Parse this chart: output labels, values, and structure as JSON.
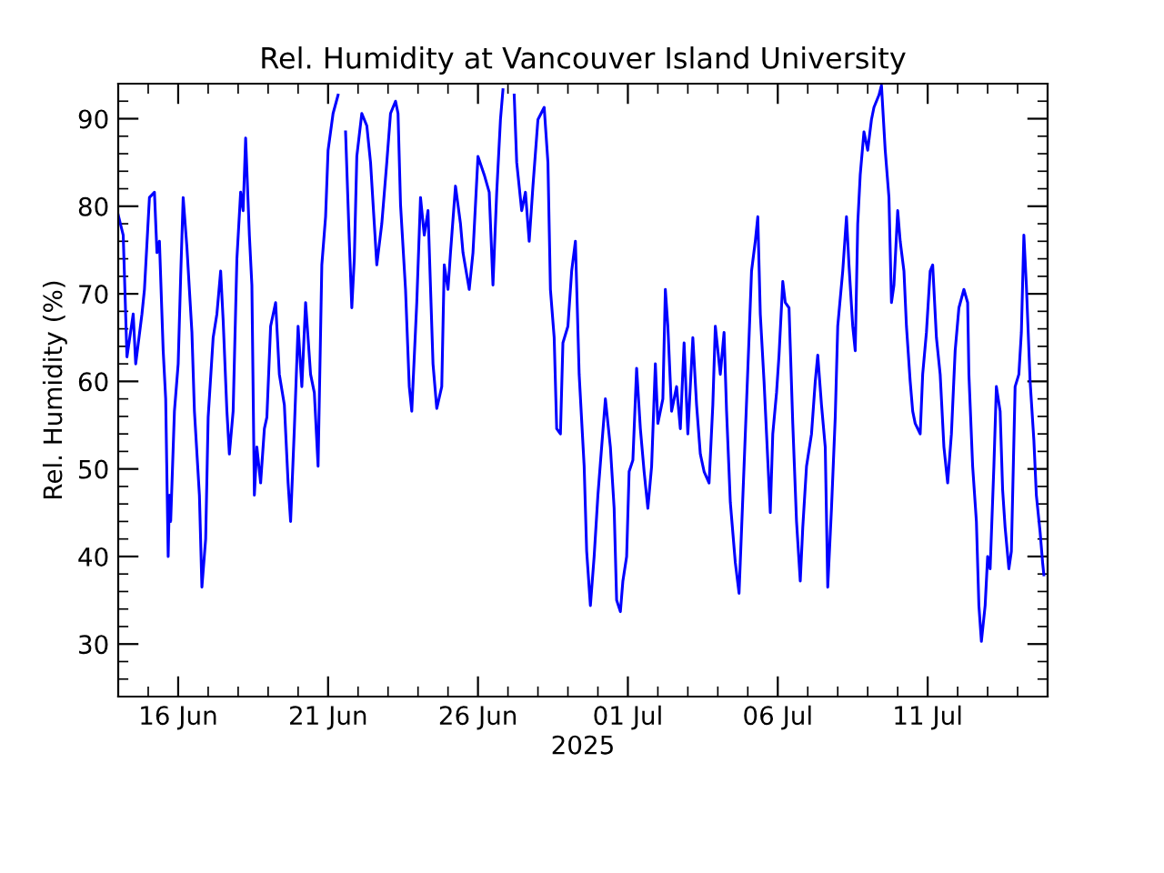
{
  "chart_data": {
    "type": "line",
    "title": "Rel. Humidity at Vancouver Island University",
    "xlabel": "2025",
    "ylabel": "Rel. Humidity (%)",
    "xlim": [
      "2025-06-14",
      "2025-07-15"
    ],
    "ylim": [
      24,
      94
    ],
    "xticks": [
      {
        "value": "2025-06-16",
        "label": "16 Jun"
      },
      {
        "value": "2025-06-21",
        "label": "21 Jun"
      },
      {
        "value": "2025-06-26",
        "label": "26 Jun"
      },
      {
        "value": "2025-07-01",
        "label": "01 Jul"
      },
      {
        "value": "2025-07-06",
        "label": "06 Jul"
      },
      {
        "value": "2025-07-11",
        "label": "11 Jul"
      }
    ],
    "yticks": [
      30,
      40,
      50,
      60,
      70,
      80,
      90
    ],
    "grid": false,
    "marker": "none",
    "line_style": "solid",
    "series": [
      {
        "color": "#0000ff",
        "x": [
          "2025-06-14T00:00",
          "2025-06-14T04:00",
          "2025-06-14T07:00",
          "2025-06-14T12:00",
          "2025-06-14T14:00",
          "2025-06-14T19:00",
          "2025-06-14T21:00",
          "2025-06-15T01:00",
          "2025-06-15T05:00",
          "2025-06-15T07:00",
          "2025-06-15T09:00",
          "2025-06-15T12:00",
          "2025-06-15T14:00",
          "2025-06-15T16:00",
          "2025-06-15T17:00",
          "2025-06-15T18:00",
          "2025-06-15T21:00",
          "2025-06-16T00:00",
          "2025-06-16T02:00",
          "2025-06-16T04:00",
          "2025-06-16T07:00",
          "2025-06-16T11:00",
          "2025-06-16T13:00",
          "2025-06-16T17:00",
          "2025-06-16T19:00",
          "2025-06-16T22:00",
          "2025-06-17T00:00",
          "2025-06-17T04:00",
          "2025-06-17T07:00",
          "2025-06-17T10:00",
          "2025-06-17T12:00",
          "2025-06-17T15:00",
          "2025-06-17T17:00",
          "2025-06-17T20:00",
          "2025-06-17T23:00",
          "2025-06-18T02:00",
          "2025-06-18T04:00",
          "2025-06-18T06:00",
          "2025-06-18T09:00",
          "2025-06-18T11:00",
          "2025-06-18T13:00",
          "2025-06-18T15:00",
          "2025-06-18T18:00",
          "2025-06-18T21:00",
          "2025-06-18T23:00",
          "2025-06-19T02:00",
          "2025-06-19T06:00",
          "2025-06-19T09:00",
          "2025-06-19T13:00",
          "2025-06-19T16:00",
          "2025-06-19T18:00",
          "2025-06-19T21:00",
          "2025-06-20T00:00",
          "2025-06-20T03:00",
          "2025-06-20T06:00",
          "2025-06-20T10:00",
          "2025-06-20T13:00",
          "2025-06-20T16:00",
          "2025-06-20T19:00",
          "2025-06-20T22:00",
          "2025-06-21T00:00",
          "2025-06-21T04:00",
          "2025-06-21T08:00",
          "2025-06-21T11:00",
          "2025-06-21T14:00",
          "2025-06-21T17:00",
          "2025-06-21T19:00",
          "2025-06-21T21:00",
          "2025-06-21T23:00",
          "2025-06-22T03:00",
          "2025-06-22T07:00",
          "2025-06-22T10:00",
          "2025-06-22T13:00",
          "2025-06-22T15:00",
          "2025-06-22T19:00",
          "2025-06-22T23:00",
          "2025-06-23T02:00",
          "2025-06-23T06:00",
          "2025-06-23T08:00",
          "2025-06-23T10:00",
          "2025-06-23T14:00",
          "2025-06-23T17:00",
          "2025-06-23T19:00",
          "2025-06-23T23:00",
          "2025-06-24T02:00",
          "2025-06-24T05:00",
          "2025-06-24T08:00",
          "2025-06-24T12:00",
          "2025-06-24T15:00",
          "2025-06-24T19:00",
          "2025-06-24T21:00",
          "2025-06-25T00:00",
          "2025-06-25T02:00",
          "2025-06-25T06:00",
          "2025-06-25T10:00",
          "2025-06-25T12:00",
          "2025-06-25T17:00",
          "2025-06-25T20:00",
          "2025-06-26T00:00",
          "2025-06-26T05:00",
          "2025-06-26T09:00",
          "2025-06-26T12:00",
          "2025-06-26T15:00",
          "2025-06-26T18:00",
          "2025-06-26T20:00",
          "2025-06-27T00:00",
          "2025-06-27T05:00",
          "2025-06-27T07:00",
          "2025-06-27T11:00",
          "2025-06-27T14:00",
          "2025-06-27T17:00",
          "2025-06-27T20:00",
          "2025-06-28T00:00",
          "2025-06-28T05:00",
          "2025-06-28T08:00",
          "2025-06-28T10:00",
          "2025-06-28T13:00",
          "2025-06-28T15:00",
          "2025-06-28T18:00",
          "2025-06-28T20:00",
          "2025-06-29T00:00",
          "2025-06-29T03:00",
          "2025-06-29T06:00",
          "2025-06-29T09:00",
          "2025-06-29T13:00",
          "2025-06-29T15:00",
          "2025-06-29T18:00",
          "2025-06-29T21:00",
          "2025-06-30T00:00",
          "2025-06-30T03:00",
          "2025-06-30T06:00",
          "2025-06-30T10:00",
          "2025-06-30T13:00",
          "2025-06-30T15:00",
          "2025-06-30T18:00",
          "2025-06-30T20:00",
          "2025-06-30T23:00",
          "2025-07-01T01:00",
          "2025-07-01T04:00",
          "2025-07-01T07:00",
          "2025-07-01T10:00",
          "2025-07-01T13:00",
          "2025-07-01T16:00",
          "2025-07-01T19:00",
          "2025-07-01T22:00",
          "2025-07-02T00:00",
          "2025-07-02T04:00",
          "2025-07-02T06:00",
          "2025-07-02T08:00",
          "2025-07-02T11:00",
          "2025-07-02T15:00",
          "2025-07-02T18:00",
          "2025-07-02T21:00",
          "2025-07-03T00:00",
          "2025-07-03T04:00",
          "2025-07-03T07:00",
          "2025-07-03T10:00",
          "2025-07-03T13:00",
          "2025-07-03T17:00",
          "2025-07-03T20:00",
          "2025-07-03T22:00",
          "2025-07-04T02:00",
          "2025-07-04T05:00",
          "2025-07-04T07:00",
          "2025-07-04T10:00",
          "2025-07-04T14:00",
          "2025-07-04T17:00",
          "2025-07-04T21:00",
          "2025-07-05T01:00",
          "2025-07-05T03:00",
          "2025-07-05T06:00",
          "2025-07-05T08:00",
          "2025-07-05T10:00",
          "2025-07-05T13:00",
          "2025-07-05T15:00",
          "2025-07-05T18:00",
          "2025-07-05T20:00",
          "2025-07-05T23:00",
          "2025-07-06T01:00",
          "2025-07-06T04:00",
          "2025-07-06T06:00",
          "2025-07-06T09:00",
          "2025-07-06T12:00",
          "2025-07-06T15:00",
          "2025-07-06T18:00",
          "2025-07-06T20:00",
          "2025-07-06T23:00",
          "2025-07-07T03:00",
          "2025-07-07T06:00",
          "2025-07-07T08:00",
          "2025-07-07T11:00",
          "2025-07-07T14:00",
          "2025-07-07T16:00",
          "2025-07-07T19:00",
          "2025-07-07T22:00",
          "2025-07-08T00:00",
          "2025-07-08T04:00",
          "2025-07-08T07:00",
          "2025-07-08T09:00",
          "2025-07-08T12:00",
          "2025-07-08T14:00",
          "2025-07-08T16:00",
          "2025-07-08T18:00",
          "2025-07-08T21:00",
          "2025-07-09T00:00",
          "2025-07-09T03:00",
          "2025-07-09T05:00",
          "2025-07-09T09:00",
          "2025-07-09T11:00",
          "2025-07-09T14:00",
          "2025-07-09T17:00",
          "2025-07-09T19:00",
          "2025-07-09T21:00",
          "2025-07-10T00:00",
          "2025-07-10T02:00",
          "2025-07-10T05:00",
          "2025-07-10T07:00",
          "2025-07-10T10:00",
          "2025-07-10T12:00",
          "2025-07-10T14:00",
          "2025-07-10T18:00",
          "2025-07-10T20:00",
          "2025-07-10T23:00",
          "2025-07-11T02:00",
          "2025-07-11T04:00",
          "2025-07-11T07:00",
          "2025-07-11T10:00",
          "2025-07-11T13:00",
          "2025-07-11T16:00",
          "2025-07-11T19:00",
          "2025-07-11T22:00",
          "2025-07-12T01:00",
          "2025-07-12T05:00",
          "2025-07-12T08:00",
          "2025-07-12T09:00",
          "2025-07-12T12:00",
          "2025-07-12T15:00",
          "2025-07-12T17:00",
          "2025-07-12T19:00",
          "2025-07-12T22:00",
          "2025-07-13T00:00",
          "2025-07-13T02:00",
          "2025-07-13T05:00",
          "2025-07-13T07:00",
          "2025-07-13T10:00",
          "2025-07-13T12:00",
          "2025-07-13T14:00",
          "2025-07-13T17:00",
          "2025-07-13T19:00",
          "2025-07-13T22:00",
          "2025-07-14T01:00",
          "2025-07-14T03:00",
          "2025-07-14T05:00",
          "2025-07-14T07:00",
          "2025-07-14T10:00",
          "2025-07-14T13:00",
          "2025-07-14T15:00",
          "2025-07-14T18:00",
          "2025-07-14T20:00",
          "2025-07-14T21:00"
        ],
        "values": [
          79,
          76.7,
          62.8,
          67.7,
          62,
          67.7,
          70.5,
          81,
          81.6,
          74.7,
          76,
          63.5,
          58,
          40,
          47,
          44,
          56.6,
          62,
          72,
          81,
          75.3,
          65.6,
          56.6,
          47,
          36.5,
          42,
          55.9,
          65,
          67.7,
          72.6,
          67,
          56.6,
          51.7,
          56.6,
          74,
          81.6,
          79.5,
          87.8,
          76.7,
          71,
          47,
          52.5,
          48.4,
          54.6,
          55.9,
          66.3,
          69,
          60.8,
          57.3,
          48.4,
          44,
          54.6,
          66.3,
          59.4,
          69,
          60.8,
          58.7,
          50.3,
          73.3,
          78.8,
          86.4,
          90.6,
          92.7,
          null,
          88.5,
          76,
          68.4,
          74,
          85.7,
          90.6,
          89.2,
          85,
          78,
          73.3,
          78,
          85,
          90.6,
          92,
          90.6,
          80.2,
          70.5,
          59.4,
          56.6,
          69,
          81,
          76.7,
          79.5,
          62,
          56.9,
          59.4,
          73.3,
          70.5,
          74.7,
          82.3,
          78,
          74.7,
          70.5,
          74.7,
          85.7,
          83.6,
          81.6,
          71,
          81.6,
          89.9,
          93.3,
          null,
          92.7,
          85,
          79.5,
          81.6,
          76,
          82.3,
          89.9,
          91.3,
          85,
          70.5,
          65,
          54.6,
          54,
          64.4,
          66.3,
          72.6,
          76,
          60.8,
          50.3,
          40.6,
          34.4,
          40,
          47,
          52.5,
          58,
          52.5,
          45.5,
          35,
          33.7,
          37.2,
          40,
          49.7,
          51,
          61.5,
          54.6,
          49.7,
          45.5,
          50.3,
          62,
          55.2,
          58,
          70.5,
          66.3,
          56.6,
          59.4,
          54.6,
          64.4,
          54,
          65,
          57.3,
          51.7,
          49.7,
          48.4,
          57.3,
          66.3,
          60.8,
          65.6,
          56.6,
          46.2,
          39.3,
          35.8,
          50.3,
          65,
          72.6,
          76,
          78.8,
          67.7,
          60,
          54,
          45,
          54,
          58.7,
          63,
          71.4,
          69,
          68.4,
          55.2,
          44,
          37.2,
          43.3,
          50.3,
          54,
          60,
          63,
          57.3,
          52.5,
          36.5,
          45.5,
          55.9,
          66.3,
          72.6,
          78.8,
          73.3,
          66.3,
          63.5,
          78,
          83.6,
          88.5,
          86.4,
          89.9,
          91.3,
          92.7,
          93.8,
          86.4,
          81,
          69,
          71,
          79.5,
          76,
          72.6,
          66.3,
          60,
          56.6,
          55.2,
          54,
          60.8,
          65.6,
          72.6,
          73.3,
          65,
          60.8,
          52.5,
          48.4,
          54,
          63.5,
          68.4,
          70.5,
          69,
          60.8,
          50.3,
          44,
          34.4,
          30.3,
          34.4,
          40,
          38.6,
          50.3,
          59.4,
          56.6,
          47.6,
          43.3,
          38.6,
          40.6,
          59.4,
          60.8,
          65.6,
          76.7,
          71,
          60,
          53.3,
          47,
          42.8,
          39.3,
          37.9
        ]
      }
    ]
  }
}
